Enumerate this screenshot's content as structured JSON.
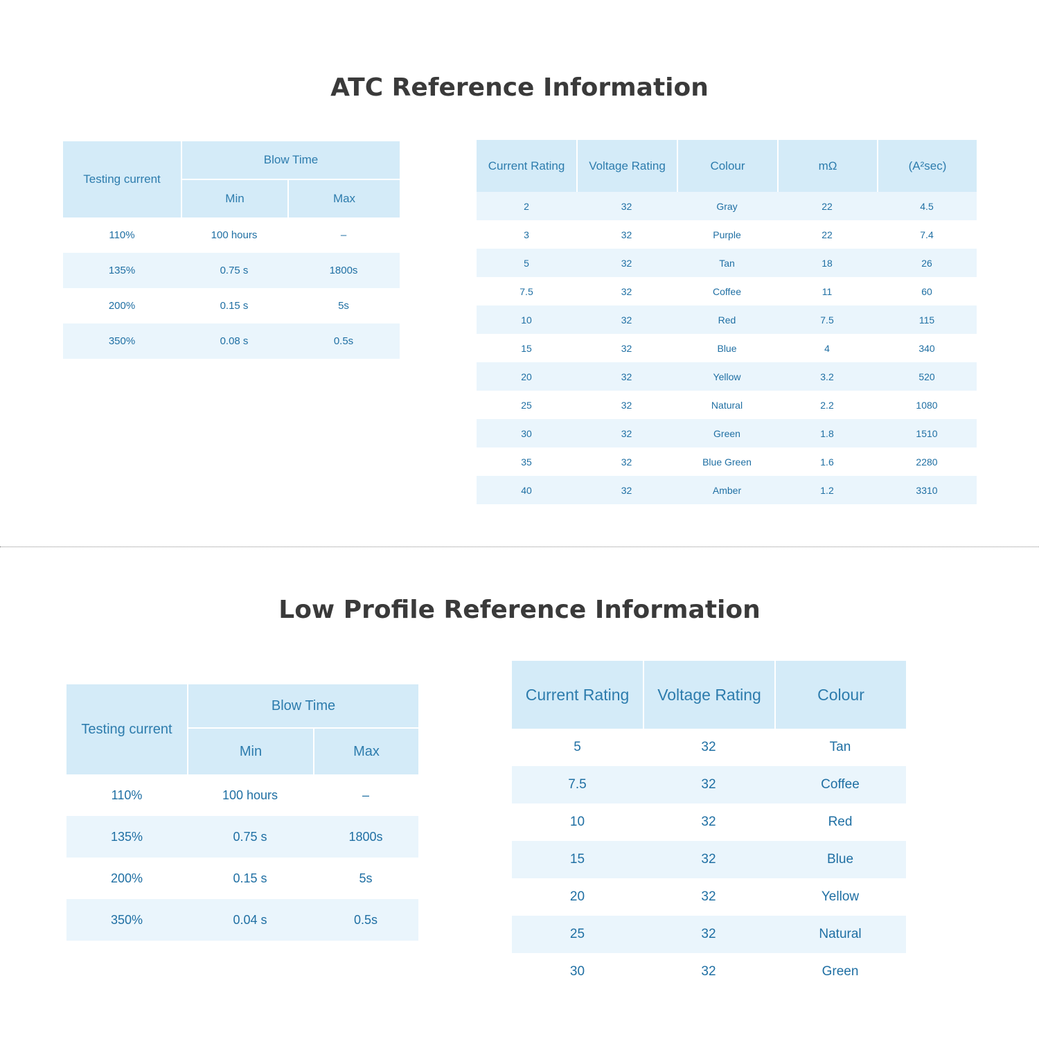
{
  "atc": {
    "title": "ATC Reference Information",
    "blow_table": {
      "header_testing": "Testing current",
      "header_blow": "Blow Time",
      "header_min": "Min",
      "header_max": "Max",
      "rows": [
        {
          "current": "110%",
          "min": "100 hours",
          "max": "–"
        },
        {
          "current": "135%",
          "min": "0.75 s",
          "max": "1800s"
        },
        {
          "current": "200%",
          "min": "0.15 s",
          "max": "5s"
        },
        {
          "current": "350%",
          "min": "0.08 s",
          "max": "0.5s"
        }
      ]
    },
    "ratings_table": {
      "headers": [
        "Current Rating",
        "Voltage Rating",
        "Colour",
        "mΩ",
        "(A²sec)"
      ],
      "rows": [
        [
          "2",
          "32",
          "Gray",
          "22",
          "4.5"
        ],
        [
          "3",
          "32",
          "Purple",
          "22",
          "7.4"
        ],
        [
          "5",
          "32",
          "Tan",
          "18",
          "26"
        ],
        [
          "7.5",
          "32",
          "Coffee",
          "11",
          "60"
        ],
        [
          "10",
          "32",
          "Red",
          "7.5",
          "115"
        ],
        [
          "15",
          "32",
          "Blue",
          "4",
          "340"
        ],
        [
          "20",
          "32",
          "Yellow",
          "3.2",
          "520"
        ],
        [
          "25",
          "32",
          "Natural",
          "2.2",
          "1080"
        ],
        [
          "30",
          "32",
          "Green",
          "1.8",
          "1510"
        ],
        [
          "35",
          "32",
          "Blue Green",
          "1.6",
          "2280"
        ],
        [
          "40",
          "32",
          "Amber",
          "1.2",
          "3310"
        ]
      ]
    }
  },
  "low_profile": {
    "title": "Low Profile Reference Information",
    "blow_table": {
      "header_testing": "Testing current",
      "header_blow": "Blow Time",
      "header_min": "Min",
      "header_max": "Max",
      "rows": [
        {
          "current": "110%",
          "min": "100 hours",
          "max": "–"
        },
        {
          "current": "135%",
          "min": "0.75 s",
          "max": "1800s"
        },
        {
          "current": "200%",
          "min": "0.15 s",
          "max": "5s"
        },
        {
          "current": "350%",
          "min": "0.04 s",
          "max": "0.5s"
        }
      ]
    },
    "ratings_table": {
      "headers": [
        "Current Rating",
        "Voltage Rating",
        "Colour"
      ],
      "rows": [
        [
          "5",
          "32",
          "Tan"
        ],
        [
          "7.5",
          "32",
          "Coffee"
        ],
        [
          "10",
          "32",
          "Red"
        ],
        [
          "15",
          "32",
          "Blue"
        ],
        [
          "20",
          "32",
          "Yellow"
        ],
        [
          "25",
          "32",
          "Natural"
        ],
        [
          "30",
          "32",
          "Green"
        ]
      ]
    }
  },
  "colors": {
    "header_bg": "#d4ebf8",
    "alt_row_bg": "#eaf5fc",
    "text_blue": "#1f6fa3",
    "title_gray": "#3a3a3a"
  }
}
